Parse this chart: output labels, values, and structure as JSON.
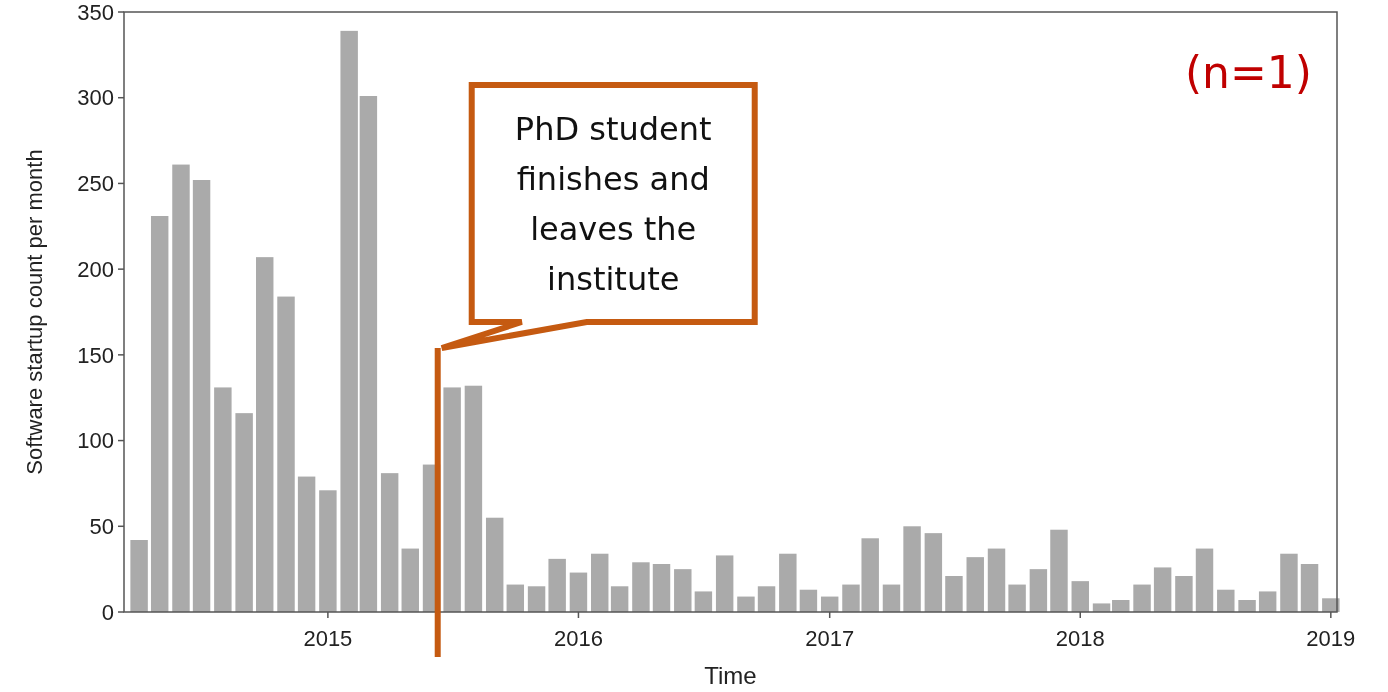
{
  "chart_data": {
    "type": "bar",
    "xlabel": "Time",
    "ylabel": "Software startup count per month",
    "x": [
      "2014-04",
      "2014-05",
      "2014-06",
      "2014-07",
      "2014-08",
      "2014-09",
      "2014-10",
      "2014-11",
      "2014-12",
      "2015-01",
      "2015-02",
      "2015-03",
      "2015-04",
      "2015-05",
      "2015-06",
      "2015-07",
      "2015-08",
      "2015-09",
      "2015-10",
      "2015-11",
      "2015-12",
      "2016-01",
      "2016-02",
      "2016-03",
      "2016-04",
      "2016-05",
      "2016-06",
      "2016-07",
      "2016-08",
      "2016-09",
      "2016-10",
      "2016-11",
      "2016-12",
      "2017-01",
      "2017-02",
      "2017-03",
      "2017-04",
      "2017-05",
      "2017-06",
      "2017-07",
      "2017-08",
      "2017-09",
      "2017-10",
      "2017-11",
      "2017-12",
      "2018-01",
      "2018-02",
      "2018-03",
      "2018-04",
      "2018-05",
      "2018-06",
      "2018-07",
      "2018-08",
      "2018-09",
      "2018-10",
      "2018-11",
      "2018-12",
      "2019-01"
    ],
    "values": [
      42,
      231,
      261,
      252,
      131,
      116,
      207,
      184,
      79,
      71,
      339,
      301,
      81,
      37,
      86,
      131,
      132,
      55,
      16,
      15,
      31,
      23,
      34,
      15,
      29,
      28,
      25,
      12,
      33,
      9,
      15,
      34,
      13,
      9,
      16,
      43,
      16,
      50,
      46,
      21,
      32,
      37,
      16,
      25,
      48,
      18,
      5,
      7,
      16,
      26,
      21,
      37,
      13,
      7,
      12,
      34,
      28,
      8
    ],
    "color": "#aaaaaa",
    "xlim": [
      "2014-03-10",
      "2019-01-10"
    ],
    "xticks": [
      "2015",
      "2016",
      "2017",
      "2018",
      "2019"
    ],
    "ylim": [
      0,
      350
    ],
    "yticks": [
      0,
      50,
      100,
      150,
      200,
      250,
      300,
      350
    ],
    "ref_lines": [
      {
        "axis": "x",
        "value": "2015-06-10",
        "label": "PhD student finishes and leaves the institute",
        "color": "#c55a11"
      }
    ],
    "annotations": [
      "(n=1)"
    ],
    "grid": false
  }
}
